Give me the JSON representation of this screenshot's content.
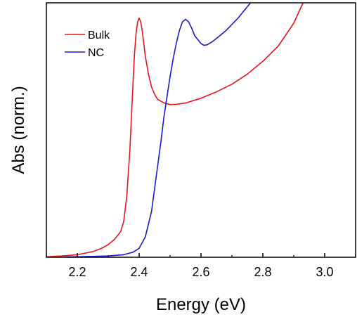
{
  "chart_data": {
    "type": "line",
    "xlabel": "Energy (eV)",
    "ylabel": "Abs (norm.)",
    "xlim": [
      2.1,
      3.1
    ],
    "ylim": [
      0,
      1.0
    ],
    "x_ticks": [
      "2.2",
      "2.4",
      "2.6",
      "2.8",
      "3.0"
    ],
    "x_tick_values": [
      2.2,
      2.4,
      2.6,
      2.8,
      3.0
    ],
    "y_ticks_shown": false,
    "grid": false,
    "legend_position": "top-left",
    "series": [
      {
        "name": "Bulk",
        "color": "#e8141c",
        "x": [
          2.1,
          2.15,
          2.2,
          2.25,
          2.28,
          2.3,
          2.32,
          2.34,
          2.35,
          2.36,
          2.37,
          2.375,
          2.38,
          2.385,
          2.39,
          2.395,
          2.4,
          2.405,
          2.41,
          2.415,
          2.42,
          2.43,
          2.44,
          2.45,
          2.46,
          2.48,
          2.5,
          2.52,
          2.55,
          2.6,
          2.65,
          2.7,
          2.75,
          2.8,
          2.85,
          2.9,
          2.93
        ],
        "y": [
          0.002,
          0.005,
          0.01,
          0.022,
          0.036,
          0.05,
          0.07,
          0.1,
          0.14,
          0.24,
          0.42,
          0.55,
          0.68,
          0.8,
          0.88,
          0.925,
          0.94,
          0.925,
          0.89,
          0.84,
          0.79,
          0.72,
          0.67,
          0.64,
          0.62,
          0.607,
          0.6,
          0.601,
          0.606,
          0.625,
          0.65,
          0.68,
          0.72,
          0.77,
          0.83,
          0.92,
          1.0
        ]
      },
      {
        "name": "NC",
        "color": "#1a1acc",
        "x": [
          2.1,
          2.2,
          2.3,
          2.35,
          2.38,
          2.4,
          2.42,
          2.44,
          2.45,
          2.46,
          2.47,
          2.48,
          2.49,
          2.5,
          2.51,
          2.52,
          2.53,
          2.54,
          2.55,
          2.56,
          2.57,
          2.58,
          2.6,
          2.61,
          2.62,
          2.64,
          2.66,
          2.68,
          2.7,
          2.72,
          2.74,
          2.76
        ],
        "y": [
          0.0,
          0.002,
          0.005,
          0.01,
          0.02,
          0.035,
          0.08,
          0.18,
          0.27,
          0.36,
          0.45,
          0.55,
          0.63,
          0.71,
          0.78,
          0.84,
          0.89,
          0.925,
          0.935,
          0.925,
          0.9,
          0.87,
          0.84,
          0.833,
          0.835,
          0.85,
          0.87,
          0.89,
          0.915,
          0.94,
          0.97,
          1.0
        ]
      }
    ]
  }
}
